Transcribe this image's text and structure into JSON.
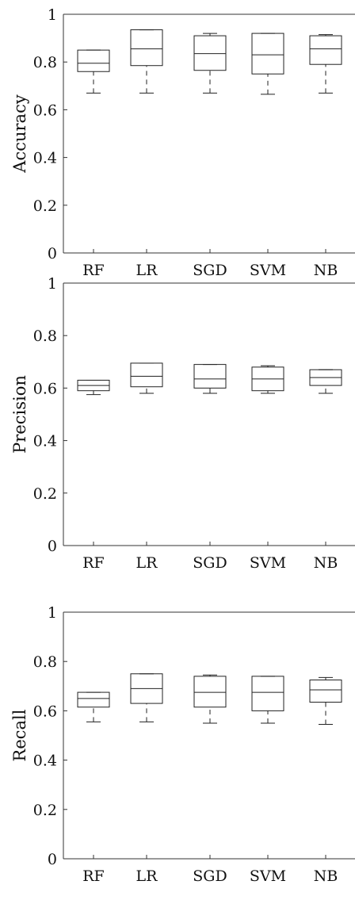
{
  "chart_data": [
    {
      "type": "box",
      "ylabel": "Accuracy",
      "categories": [
        "RF",
        "LR",
        "SGD",
        "SVM",
        "NB"
      ],
      "ylim": [
        0,
        1
      ],
      "yticks": [
        "0",
        "0.2",
        "0.4",
        "0.6",
        "0.8",
        "1"
      ],
      "grid": false,
      "boxes": [
        {
          "min": 0.67,
          "q1": 0.76,
          "median": 0.795,
          "q3": 0.85,
          "max": 0.85
        },
        {
          "min": 0.67,
          "q1": 0.785,
          "median": 0.855,
          "q3": 0.935,
          "max": 0.935
        },
        {
          "min": 0.67,
          "q1": 0.765,
          "median": 0.835,
          "q3": 0.91,
          "max": 0.92
        },
        {
          "min": 0.665,
          "q1": 0.75,
          "median": 0.83,
          "q3": 0.92,
          "max": 0.92
        },
        {
          "min": 0.67,
          "q1": 0.79,
          "median": 0.855,
          "q3": 0.91,
          "max": 0.915
        }
      ]
    },
    {
      "type": "box",
      "ylabel": "Precision",
      "categories": [
        "RF",
        "LR",
        "SGD",
        "SVM",
        "NB"
      ],
      "ylim": [
        0,
        1
      ],
      "yticks": [
        "0",
        "0.2",
        "0.4",
        "0.6",
        "0.8",
        "1"
      ],
      "grid": false,
      "boxes": [
        {
          "min": 0.575,
          "q1": 0.59,
          "median": 0.61,
          "q3": 0.63,
          "max": 0.63
        },
        {
          "min": 0.58,
          "q1": 0.605,
          "median": 0.645,
          "q3": 0.695,
          "max": 0.695
        },
        {
          "min": 0.58,
          "q1": 0.6,
          "median": 0.635,
          "q3": 0.69,
          "max": 0.69
        },
        {
          "min": 0.58,
          "q1": 0.59,
          "median": 0.635,
          "q3": 0.68,
          "max": 0.685
        },
        {
          "min": 0.58,
          "q1": 0.61,
          "median": 0.64,
          "q3": 0.67,
          "max": 0.67
        }
      ]
    },
    {
      "type": "box",
      "ylabel": "Recall",
      "categories": [
        "RF",
        "LR",
        "SGD",
        "SVM",
        "NB"
      ],
      "ylim": [
        0,
        1
      ],
      "yticks": [
        "0",
        "0.2",
        "0.4",
        "0.6",
        "0.8",
        "1"
      ],
      "grid": false,
      "boxes": [
        {
          "min": 0.555,
          "q1": 0.615,
          "median": 0.65,
          "q3": 0.675,
          "max": 0.675
        },
        {
          "min": 0.555,
          "q1": 0.63,
          "median": 0.69,
          "q3": 0.75,
          "max": 0.75
        },
        {
          "min": 0.55,
          "q1": 0.615,
          "median": 0.675,
          "q3": 0.74,
          "max": 0.745
        },
        {
          "min": 0.55,
          "q1": 0.6,
          "median": 0.675,
          "q3": 0.74,
          "max": 0.74
        },
        {
          "min": 0.545,
          "q1": 0.635,
          "median": 0.685,
          "q3": 0.725,
          "max": 0.735
        }
      ]
    }
  ]
}
